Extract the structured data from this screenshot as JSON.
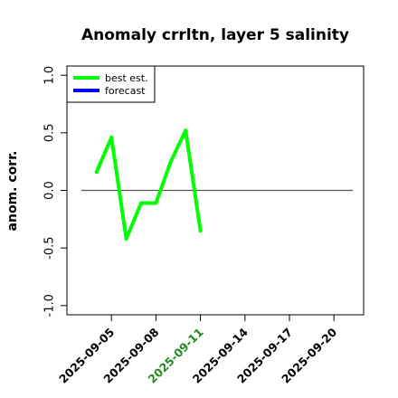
{
  "chart_data": {
    "type": "line",
    "title": "Anomaly crrltn, layer 5 salinity",
    "xlabel": "",
    "ylabel": "anom. corr.",
    "x_ticks": [
      "2025-09-05",
      "2025-09-08",
      "2025-09-11",
      "2025-09-14",
      "2025-09-17",
      "2025-09-20"
    ],
    "highlighted_x_tick": "2025-09-11",
    "highlight_color": "#228B22",
    "y_ticks": [
      "-1.0",
      "-0.5",
      "0.0",
      "0.5",
      "1.0"
    ],
    "xlim": [
      "2025-09-02",
      "2025-09-22"
    ],
    "ylim": [
      -1.08,
      1.08
    ],
    "reference_line": 0.0,
    "legend": {
      "position": "top-left"
    },
    "series": [
      {
        "name": "best est.",
        "color": "#00ff00",
        "points": [
          {
            "x": "2025-09-04",
            "y": 0.16
          },
          {
            "x": "2025-09-05",
            "y": 0.46
          },
          {
            "x": "2025-09-06",
            "y": -0.42
          },
          {
            "x": "2025-09-07",
            "y": -0.11
          },
          {
            "x": "2025-09-08",
            "y": -0.11
          },
          {
            "x": "2025-09-09",
            "y": 0.25
          },
          {
            "x": "2025-09-10",
            "y": 0.52
          },
          {
            "x": "2025-09-11",
            "y": -0.35
          }
        ]
      },
      {
        "name": "forecast",
        "color": "#0000ff",
        "points": []
      }
    ]
  }
}
